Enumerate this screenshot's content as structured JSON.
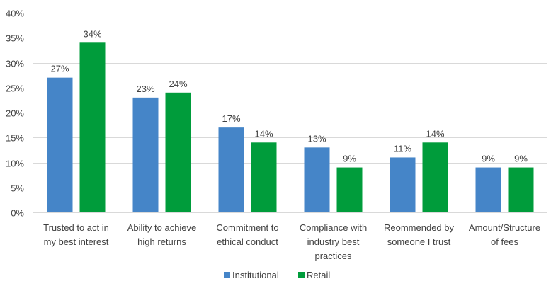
{
  "chart_data": {
    "type": "bar",
    "title": "",
    "xlabel": "",
    "ylabel": "",
    "ylim": [
      0,
      0.4
    ],
    "yticks": [
      0,
      0.05,
      0.1,
      0.15,
      0.2,
      0.25,
      0.3,
      0.35,
      0.4
    ],
    "ytick_labels": [
      "0%",
      "5%",
      "10%",
      "15%",
      "20%",
      "25%",
      "30%",
      "35%",
      "40%"
    ],
    "grid": true,
    "legend_position": "bottom",
    "categories": [
      [
        "Trusted to act in",
        "my best interest"
      ],
      [
        "Ability to achieve",
        "high returns"
      ],
      [
        "Commitment to",
        "ethical conduct"
      ],
      [
        "Compliance with",
        "industry best",
        "practices"
      ],
      [
        "Reommended by",
        "someone I trust"
      ],
      [
        "Amount/Structure",
        "of fees"
      ]
    ],
    "series": [
      {
        "name": "Institutional",
        "color": "#4585C8",
        "values": [
          0.27,
          0.23,
          0.17,
          0.13,
          0.11,
          0.09
        ],
        "labels": [
          "27%",
          "23%",
          "17%",
          "13%",
          "11%",
          "9%"
        ]
      },
      {
        "name": "Retail",
        "color": "#009C3B",
        "values": [
          0.34,
          0.24,
          0.14,
          0.09,
          0.14,
          0.09
        ],
        "labels": [
          "34%",
          "24%",
          "14%",
          "9%",
          "14%",
          "9%"
        ]
      }
    ]
  }
}
